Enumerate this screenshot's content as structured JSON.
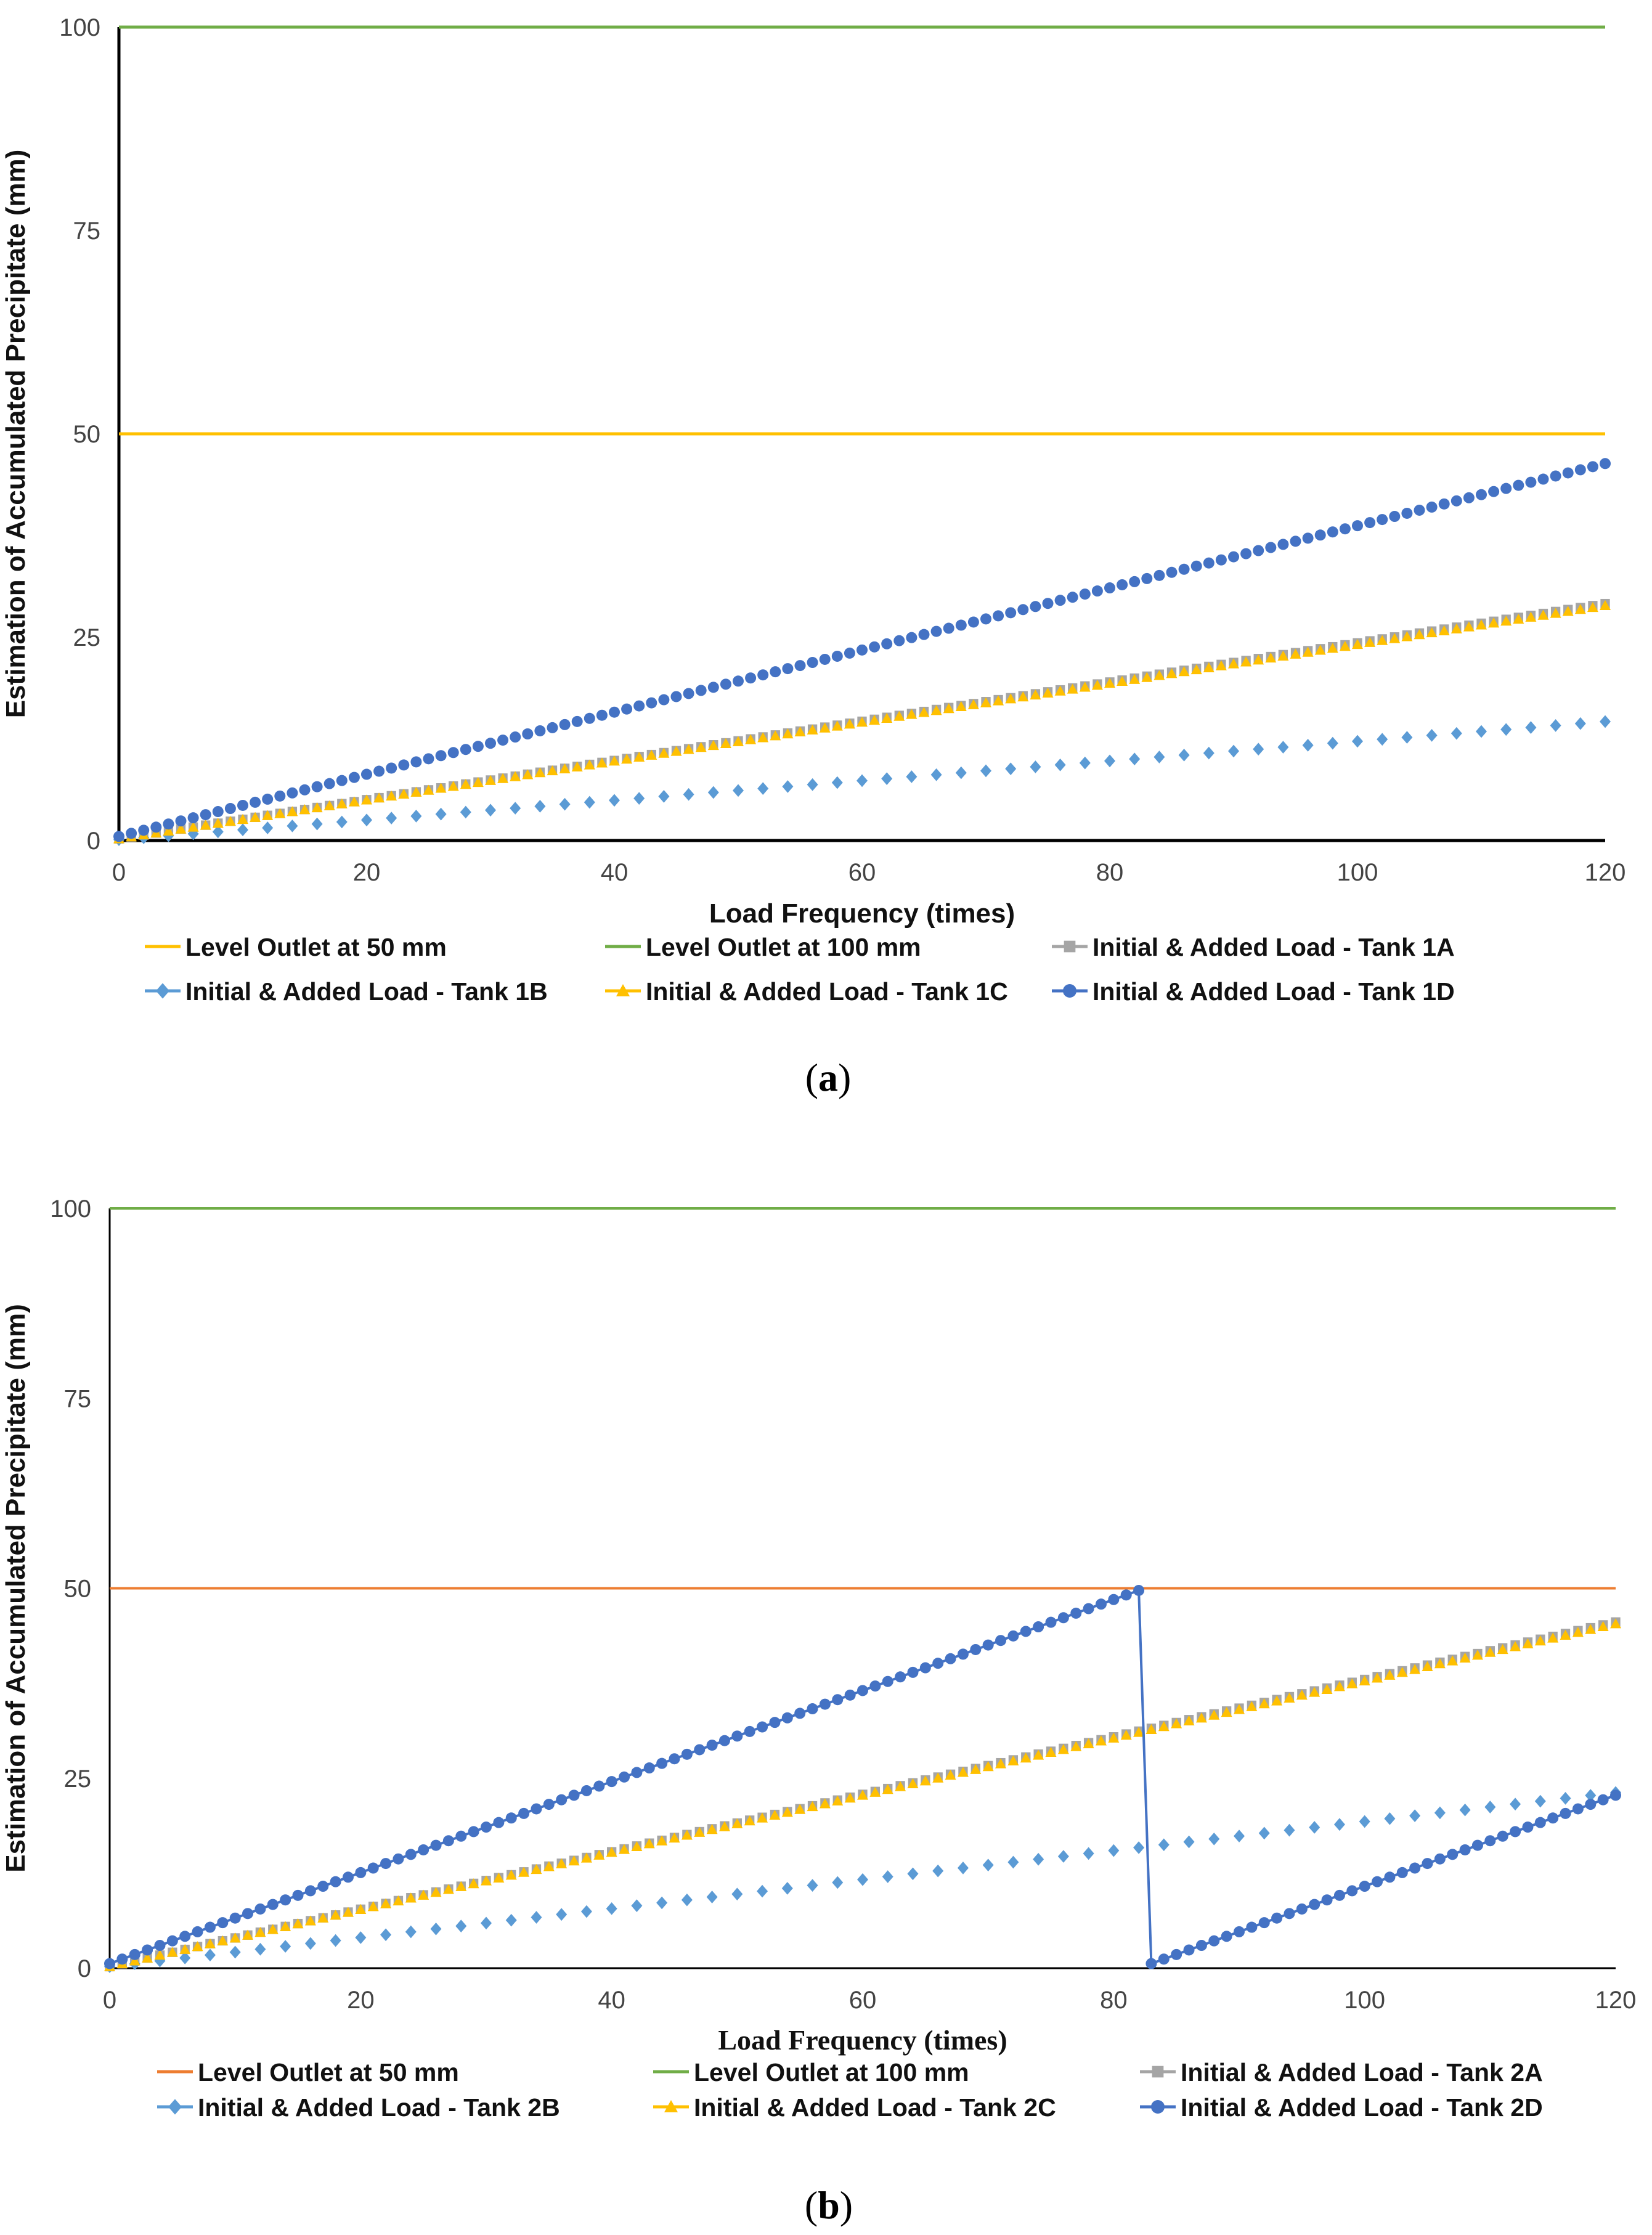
{
  "chart_data": [
    {
      "type": "line",
      "panel_label": "a",
      "xlabel": "Load Frequency (times)",
      "ylabel": "Estimation of Accumulated Precipitate (mm)",
      "xlim": [
        0,
        120
      ],
      "ylim": [
        0,
        100
      ],
      "xticks": [
        "0",
        "20",
        "40",
        "60",
        "80",
        "100",
        "120"
      ],
      "yticks": [
        "0",
        "25",
        "50",
        "75",
        "100"
      ],
      "series": [
        {
          "name": "Level Outlet at 50 mm",
          "kind": "hline",
          "value": 50,
          "color": "#FFC000",
          "marker": "none"
        },
        {
          "name": "Level Outlet at 100 mm",
          "kind": "hline",
          "value": 100,
          "color": "#70AD47",
          "marker": "none"
        },
        {
          "name": "Initial & Added Load - Tank 1A",
          "kind": "linear",
          "start": 0.2,
          "slope": 0.241,
          "color": "#A5A5A5",
          "marker": "square"
        },
        {
          "name": "Initial & Added Load - Tank 1B",
          "kind": "linear",
          "start": 0.1,
          "slope": 0.121,
          "color": "#5B9BD5",
          "marker": "diamond",
          "step": 2
        },
        {
          "name": "Initial & Added Load - Tank 1C",
          "kind": "linear",
          "start": 0.2,
          "slope": 0.239,
          "color": "#FFC000",
          "marker": "triangle"
        },
        {
          "name": "Initial & Added Load - Tank 1D",
          "kind": "linear",
          "start": 0.5,
          "slope": 0.382,
          "color": "#4472C4",
          "marker": "circle"
        }
      ]
    },
    {
      "type": "line",
      "panel_label": "b",
      "xlabel": "Load Frequency (times)",
      "ylabel": "Estimation of Accumulated Precipitate (mm)",
      "xlim": [
        0,
        120
      ],
      "ylim": [
        0,
        100
      ],
      "xticks": [
        "0",
        "20",
        "40",
        "60",
        "80",
        "100",
        "120"
      ],
      "yticks": [
        "0",
        "25",
        "50",
        "75",
        "100"
      ],
      "series": [
        {
          "name": "Level Outlet at 50 mm",
          "kind": "hline",
          "value": 50,
          "color": "#ED7D31",
          "marker": "none"
        },
        {
          "name": "Level Outlet at 100 mm",
          "kind": "hline",
          "value": 100,
          "color": "#70AD47",
          "marker": "none"
        },
        {
          "name": "Initial & Added Load - Tank 2A",
          "kind": "linear",
          "start": 0.2,
          "slope": 0.378,
          "color": "#A5A5A5",
          "marker": "square"
        },
        {
          "name": "Initial & Added Load - Tank 2B",
          "kind": "linear",
          "start": 0.2,
          "slope": 0.191,
          "color": "#5B9BD5",
          "marker": "diamond",
          "step": 2
        },
        {
          "name": "Initial & Added Load - Tank 2C",
          "kind": "linear",
          "start": 0.2,
          "slope": 0.376,
          "color": "#FFC000",
          "marker": "triangle"
        },
        {
          "name": "Initial & Added Load - Tank 2D",
          "kind": "reset",
          "start": 0.6,
          "slope": 0.599,
          "reset_at": 83,
          "color": "#4472C4",
          "marker": "circle"
        }
      ]
    }
  ]
}
